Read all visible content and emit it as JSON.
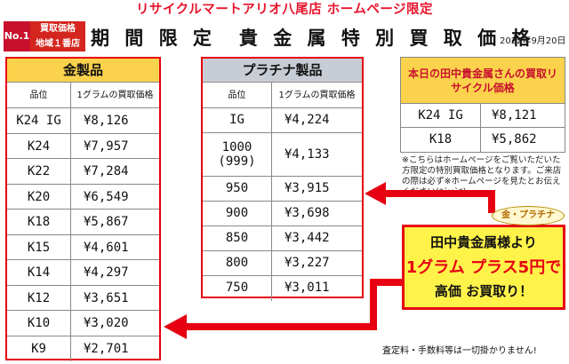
{
  "banner": "リサイクルマートアリオ八尾店 ホームページ限定",
  "badge": {
    "no1": "No.1",
    "line1": "買取価格",
    "line2": "地域１番店"
  },
  "headline": "期 間 限 定　貴 金 属 特 別 買 取 価 格",
  "date": "2022年9月20日",
  "gold": {
    "title": "金製品",
    "col1": "品位",
    "col2": "1グラムの買取価格",
    "rows": [
      {
        "grade": "K24 IG",
        "price": "¥8,126"
      },
      {
        "grade": "K24",
        "price": "¥7,957"
      },
      {
        "grade": "K22",
        "price": "¥7,284"
      },
      {
        "grade": "K20",
        "price": "¥6,549"
      },
      {
        "grade": "K18",
        "price": "¥5,867"
      },
      {
        "grade": "K15",
        "price": "¥4,601"
      },
      {
        "grade": "K14",
        "price": "¥4,297"
      },
      {
        "grade": "K12",
        "price": "¥3,651"
      },
      {
        "grade": "K10",
        "price": "¥3,020"
      },
      {
        "grade": "K9",
        "price": "¥2,701"
      }
    ]
  },
  "platinum": {
    "title": "プラチナ製品",
    "col1": "品位",
    "col2": "1グラムの買取価格",
    "rows": [
      {
        "grade": "IG",
        "price": "¥4,224"
      },
      {
        "grade": "1000\n(999)",
        "price": "¥4,133"
      },
      {
        "grade": "950",
        "price": "¥3,915"
      },
      {
        "grade": "900",
        "price": "¥3,698"
      },
      {
        "grade": "850",
        "price": "¥3,442"
      },
      {
        "grade": "800",
        "price": "¥3,227"
      },
      {
        "grade": "750",
        "price": "¥3,011"
      }
    ]
  },
  "tanaka": {
    "title": "本日の田中貴金属さんの買取リサイクル価格",
    "rows": [
      {
        "grade": "K24 IG",
        "price": "¥8,121"
      },
      {
        "grade": "K18",
        "price": "¥5,862"
      }
    ]
  },
  "note": "※こちらはホームページをご覧いただいた方限定の特別買取価格となります。ご来店の際は必ず※ホームページを見たとお伝えください(*´ω`*)",
  "promo": {
    "bubble": "金・プラチナ",
    "line1": "田中貴金属様より",
    "line2": "1グラム プラス5円で",
    "line3": "高価 お買取り！"
  },
  "footer": "査定料・手数料等は一切掛かりません!",
  "colors": {
    "accent_red": "#e60012",
    "gold_header": "#fbd24b",
    "plat_header": "#c8ccd4",
    "promo_bg": "#fff34a"
  }
}
